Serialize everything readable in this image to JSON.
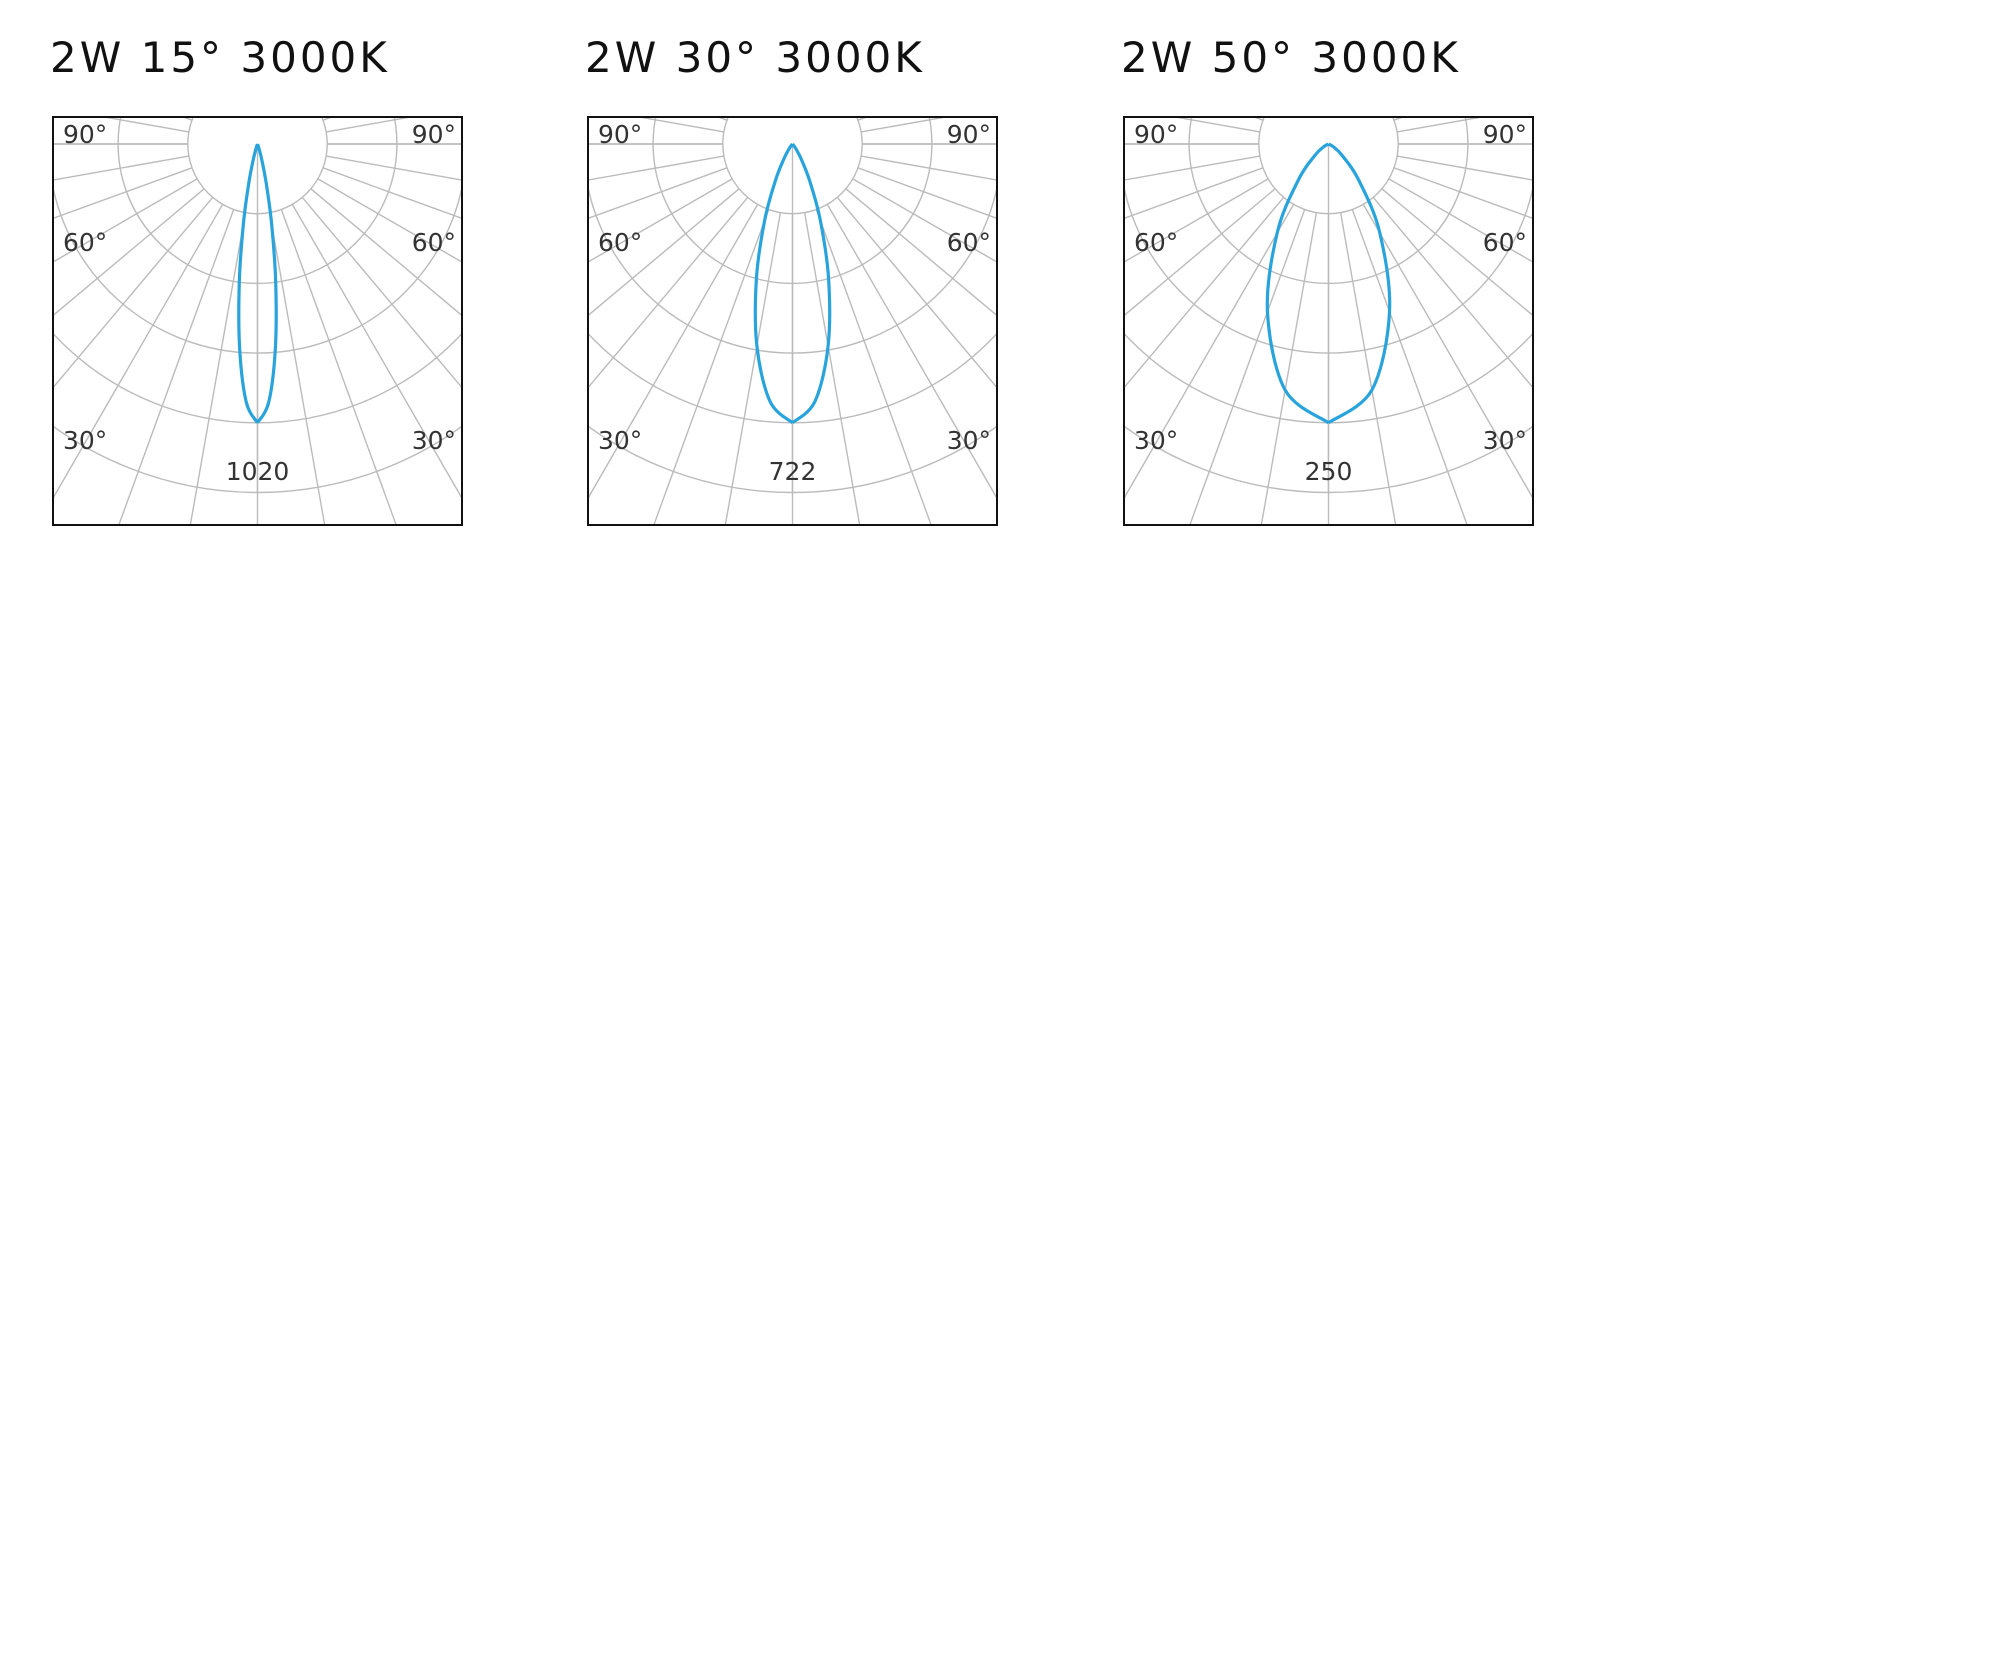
{
  "chart_data": [
    {
      "type": "polar",
      "title": "2W 15° 3000K",
      "color": "#29a3dc",
      "angles": [
        0,
        2.5,
        5,
        7.5,
        10,
        12.5,
        15,
        17.5,
        20,
        25
      ],
      "values": [
        1020,
        945,
        750,
        510,
        298,
        149,
        64,
        23,
        7,
        0
      ],
      "rlim": [
        0,
        1275
      ],
      "rticks": [
        255,
        510,
        765,
        1020,
        1275
      ],
      "angle_labels": [
        "90°",
        "60°",
        "30°"
      ]
    },
    {
      "type": "polar",
      "title": "2W 30° 3000K",
      "color": "#29a3dc",
      "angles": [
        0,
        5,
        10,
        15,
        20,
        25,
        30,
        35,
        40,
        45
      ],
      "values": [
        722,
        669,
        531,
        361,
        211,
        105,
        45,
        17,
        5,
        0
      ],
      "rlim": [
        0,
        902.5
      ],
      "rticks": [
        180.5,
        361,
        541.5,
        722,
        902.5
      ],
      "angle_labels": [
        "90°",
        "60°",
        "30°"
      ]
    },
    {
      "type": "polar",
      "title": "2W 50° 3000K",
      "color": "#29a3dc",
      "angles": [
        0,
        10,
        20,
        30,
        40,
        50,
        60,
        70
      ],
      "values": [
        250,
        224,
        160,
        92,
        42,
        16,
        5,
        0
      ],
      "rlim": [
        0,
        312.5
      ],
      "rticks": [
        62.5,
        125,
        187.5,
        250,
        312.5
      ],
      "angle_labels": [
        "90°",
        "60°",
        "30°"
      ]
    }
  ]
}
